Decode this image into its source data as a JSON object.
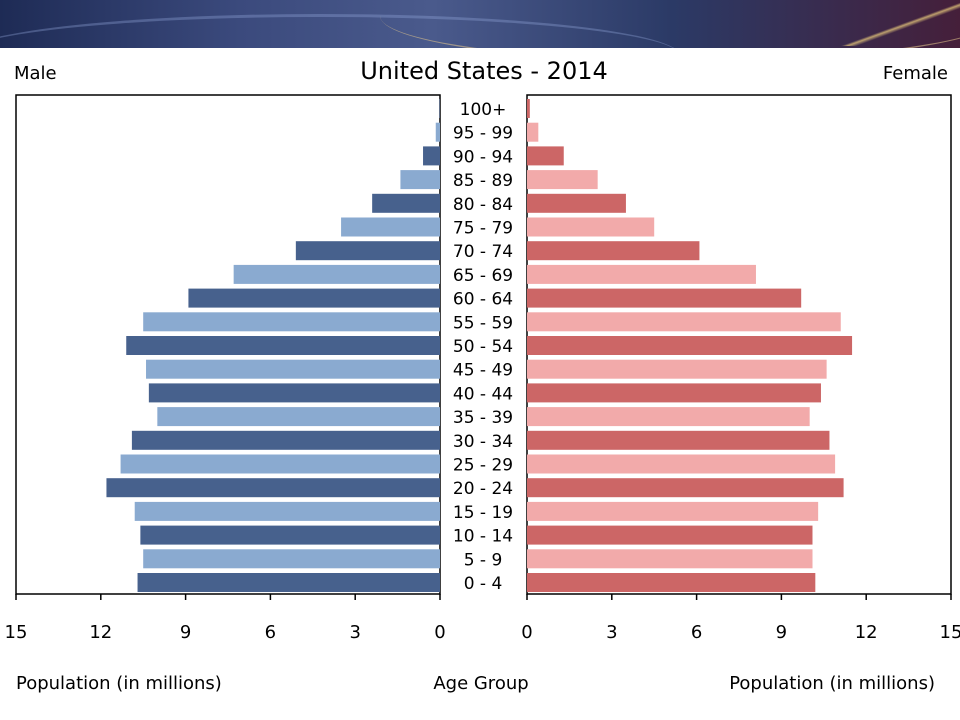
{
  "chart_data": {
    "type": "bar",
    "title": "United States - 2014",
    "left_label": "Male",
    "right_label": "Female",
    "xlabel_left": "Population (in millions)",
    "xlabel_center": "Age Group",
    "xlabel_right": "Population (in millions)",
    "xlim": [
      0,
      15
    ],
    "x_ticks": [
      "15",
      "12",
      "9",
      "6",
      "3",
      "0"
    ],
    "x_ticks_right": [
      "0",
      "3",
      "6",
      "9",
      "12",
      "15"
    ],
    "categories": [
      "100+",
      "95 - 99",
      "90 - 94",
      "85 - 89",
      "80 - 84",
      "75 - 79",
      "70 - 74",
      "65 - 69",
      "60 - 64",
      "55 - 59",
      "50 - 54",
      "45 - 49",
      "40 - 44",
      "35 - 39",
      "30 - 34",
      "25 - 29",
      "20 - 24",
      "15 - 19",
      "10 - 14",
      "5 - 9",
      "0 - 4"
    ],
    "series": [
      {
        "name": "Male",
        "values": [
          0.02,
          0.15,
          0.6,
          1.4,
          2.4,
          3.5,
          5.1,
          7.3,
          8.9,
          10.5,
          11.1,
          10.4,
          10.3,
          10.0,
          10.9,
          11.3,
          11.8,
          10.8,
          10.6,
          10.5,
          10.7
        ]
      },
      {
        "name": "Female",
        "values": [
          0.1,
          0.4,
          1.3,
          2.5,
          3.5,
          4.5,
          6.1,
          8.1,
          9.7,
          11.1,
          11.5,
          10.6,
          10.4,
          10.0,
          10.7,
          10.9,
          11.2,
          10.3,
          10.1,
          10.1,
          10.2
        ]
      }
    ],
    "colors": {
      "male_dark": "#47618d",
      "male_light": "#8aaad0",
      "female_dark": "#cc6666",
      "female_light": "#f2aaaa"
    }
  }
}
